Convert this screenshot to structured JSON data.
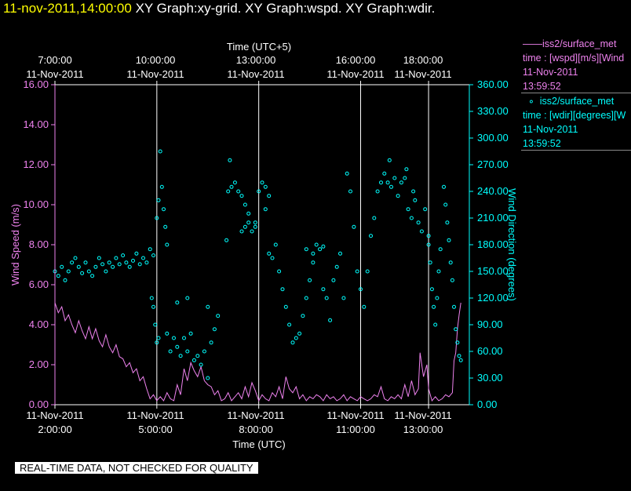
{
  "header": {
    "datetime": "11-nov-2011,14:00:00",
    "graphs": "XY Graph:xy-grid.  XY Graph:wspd.  XY Graph:wdir."
  },
  "top_axis": {
    "title": "Time (UTC+5)",
    "ticks": [
      {
        "time": "7:00:00",
        "date": "11-Nov-2011"
      },
      {
        "time": "10:00:00",
        "date": "11-Nov-2011"
      },
      {
        "time": "13:00:00",
        "date": "11-Nov-2011"
      },
      {
        "time": "16:00:00",
        "date": "11-Nov-2011"
      },
      {
        "time": "18:00:00",
        "date": "11-Nov-2011"
      }
    ]
  },
  "bottom_axis": {
    "title": "Time (UTC)",
    "ticks": [
      {
        "date": "11-Nov-2011",
        "time": "2:00:00"
      },
      {
        "date": "11-Nov-2011",
        "time": "5:00:00"
      },
      {
        "date": "11-Nov-2011",
        "time": "8:00:00"
      },
      {
        "date": "11-Nov-2011",
        "time": "11:00:00"
      },
      {
        "date": "11-Nov-2011",
        "time": "13:00:00"
      }
    ]
  },
  "legend": {
    "wspd": {
      "title": "iss2/surface_met",
      "line2": "time : [wspd][m/s][Wind",
      "date": "11-Nov-2011",
      "time": "13:59:52"
    },
    "wdir": {
      "title": "iss2/surface_met",
      "line2": "time : [wdir][degrees][W",
      "date": "11-Nov-2011",
      "time": "13:59:52"
    }
  },
  "notice": "REAL-TIME DATA, NOT CHECKED FOR QUALITY",
  "colors": {
    "wspd": "#ee82ee",
    "wdir": "#00ffff",
    "grid": "#ffffff",
    "background": "#000000"
  },
  "chart_data": {
    "type": "line+scatter",
    "x_unit": "hours UTC, 11-Nov-2011",
    "xlim": [
      2.0,
      14.2
    ],
    "grid_x": [
      5,
      8,
      11,
      13
    ],
    "left_axis": {
      "label": "Wind Speed (m/s)",
      "ylim": [
        0,
        16
      ],
      "ticks": [
        "0.00",
        "2.00",
        "4.00",
        "6.00",
        "8.00",
        "10.00",
        "12.00",
        "14.00",
        "16.00"
      ]
    },
    "right_axis": {
      "label": "Wind Direction (degrees)",
      "ylim": [
        0,
        360
      ],
      "ticks": [
        "0.00",
        "30.00",
        "60.00",
        "90.00",
        "120.00",
        "150.00",
        "180.00",
        "210.00",
        "240.00",
        "270.00",
        "300.00",
        "330.00",
        "360.00"
      ]
    },
    "series": [
      {
        "name": "wspd",
        "style": "line",
        "axis": "left",
        "points": [
          [
            2.0,
            5.1
          ],
          [
            2.1,
            4.6
          ],
          [
            2.2,
            4.9
          ],
          [
            2.3,
            4.2
          ],
          [
            2.4,
            4.5
          ],
          [
            2.5,
            4.0
          ],
          [
            2.6,
            3.6
          ],
          [
            2.7,
            4.2
          ],
          [
            2.8,
            3.7
          ],
          [
            2.9,
            3.3
          ],
          [
            3.0,
            3.9
          ],
          [
            3.1,
            3.3
          ],
          [
            3.2,
            3.8
          ],
          [
            3.3,
            3.2
          ],
          [
            3.4,
            2.9
          ],
          [
            3.5,
            3.5
          ],
          [
            3.6,
            2.9
          ],
          [
            3.7,
            2.6
          ],
          [
            3.8,
            3.0
          ],
          [
            3.9,
            2.4
          ],
          [
            4.0,
            2.3
          ],
          [
            4.1,
            1.9
          ],
          [
            4.2,
            2.1
          ],
          [
            4.3,
            1.6
          ],
          [
            4.4,
            1.8
          ],
          [
            4.5,
            1.2
          ],
          [
            4.6,
            1.4
          ],
          [
            4.7,
            0.8
          ],
          [
            4.8,
            0.3
          ],
          [
            4.9,
            0.5
          ],
          [
            5.0,
            0.2
          ],
          [
            5.1,
            0.4
          ],
          [
            5.2,
            0.2
          ],
          [
            5.3,
            0.6
          ],
          [
            5.4,
            0.3
          ],
          [
            5.5,
            0.2
          ],
          [
            5.6,
            1.0
          ],
          [
            5.7,
            0.5
          ],
          [
            5.8,
            1.8
          ],
          [
            5.9,
            1.2
          ],
          [
            6.0,
            2.1
          ],
          [
            6.1,
            1.7
          ],
          [
            6.2,
            1.4
          ],
          [
            6.3,
            1.9
          ],
          [
            6.4,
            1.2
          ],
          [
            6.5,
            1.0
          ],
          [
            6.6,
            0.9
          ],
          [
            6.7,
            0.5
          ],
          [
            6.8,
            0.7
          ],
          [
            6.9,
            0.2
          ],
          [
            7.0,
            0.3
          ],
          [
            7.1,
            0.6
          ],
          [
            7.2,
            0.2
          ],
          [
            7.3,
            0.4
          ],
          [
            7.4,
            0.6
          ],
          [
            7.5,
            0.3
          ],
          [
            7.6,
            0.9
          ],
          [
            7.7,
            0.4
          ],
          [
            7.8,
            1.1
          ],
          [
            7.9,
            0.7
          ],
          [
            8.0,
            0.2
          ],
          [
            8.1,
            0.5
          ],
          [
            8.2,
            0.3
          ],
          [
            8.3,
            0.2
          ],
          [
            8.4,
            0.6
          ],
          [
            8.5,
            0.4
          ],
          [
            8.6,
            0.9
          ],
          [
            8.7,
            0.3
          ],
          [
            8.8,
            1.4
          ],
          [
            8.9,
            0.8
          ],
          [
            9.0,
            0.6
          ],
          [
            9.1,
            0.9
          ],
          [
            9.2,
            0.3
          ],
          [
            9.3,
            0.5
          ],
          [
            9.4,
            0.2
          ],
          [
            9.5,
            0.4
          ],
          [
            9.6,
            0.3
          ],
          [
            9.7,
            0.5
          ],
          [
            9.8,
            0.4
          ],
          [
            9.9,
            0.2
          ],
          [
            10.0,
            0.5
          ],
          [
            10.1,
            0.3
          ],
          [
            10.2,
            0.4
          ],
          [
            10.3,
            0.2
          ],
          [
            10.4,
            0.3
          ],
          [
            10.5,
            0.5
          ],
          [
            10.6,
            0.2
          ],
          [
            10.7,
            0.4
          ],
          [
            10.8,
            0.3
          ],
          [
            10.9,
            0.2
          ],
          [
            11.0,
            0.4
          ],
          [
            11.1,
            0.3
          ],
          [
            11.2,
            0.2
          ],
          [
            11.3,
            0.3
          ],
          [
            11.4,
            0.5
          ],
          [
            11.5,
            0.4
          ],
          [
            11.6,
            0.9
          ],
          [
            11.7,
            0.3
          ],
          [
            11.8,
            0.2
          ],
          [
            11.9,
            0.4
          ],
          [
            12.0,
            0.3
          ],
          [
            12.1,
            0.5
          ],
          [
            12.2,
            0.3
          ],
          [
            12.3,
            1.0
          ],
          [
            12.4,
            0.4
          ],
          [
            12.5,
            1.2
          ],
          [
            12.6,
            0.5
          ],
          [
            12.7,
            0.8
          ],
          [
            12.75,
            2.6
          ],
          [
            12.85,
            1.4
          ],
          [
            12.95,
            2.0
          ],
          [
            13.0,
            0.8
          ],
          [
            13.1,
            0.2
          ],
          [
            13.2,
            0.4
          ],
          [
            13.3,
            0.2
          ],
          [
            13.4,
            0.3
          ],
          [
            13.5,
            0.5
          ],
          [
            13.6,
            0.4
          ],
          [
            13.7,
            0.6
          ],
          [
            13.75,
            2.2
          ],
          [
            13.8,
            2.6
          ],
          [
            13.85,
            3.8
          ],
          [
            13.9,
            4.5
          ],
          [
            13.95,
            5.1
          ]
        ]
      },
      {
        "name": "wdir",
        "style": "scatter",
        "axis": "right",
        "points": [
          [
            2.0,
            150
          ],
          [
            2.1,
            145
          ],
          [
            2.2,
            155
          ],
          [
            2.3,
            140
          ],
          [
            2.4,
            150
          ],
          [
            2.5,
            160
          ],
          [
            2.6,
            165
          ],
          [
            2.7,
            155
          ],
          [
            2.8,
            148
          ],
          [
            2.9,
            160
          ],
          [
            3.0,
            150
          ],
          [
            3.1,
            145
          ],
          [
            3.2,
            155
          ],
          [
            3.3,
            165
          ],
          [
            3.4,
            158
          ],
          [
            3.5,
            150
          ],
          [
            3.6,
            160
          ],
          [
            3.7,
            155
          ],
          [
            3.8,
            165
          ],
          [
            3.9,
            158
          ],
          [
            4.0,
            168
          ],
          [
            4.1,
            160
          ],
          [
            4.2,
            155
          ],
          [
            4.3,
            162
          ],
          [
            4.4,
            170
          ],
          [
            4.5,
            158
          ],
          [
            4.6,
            165
          ],
          [
            4.7,
            160
          ],
          [
            4.8,
            175
          ],
          [
            4.9,
            168
          ],
          [
            4.85,
            120
          ],
          [
            4.9,
            110
          ],
          [
            4.95,
            90
          ],
          [
            5.0,
            70
          ],
          [
            5.05,
            75
          ],
          [
            5.0,
            210
          ],
          [
            5.05,
            230
          ],
          [
            5.1,
            285
          ],
          [
            5.15,
            245
          ],
          [
            5.2,
            220
          ],
          [
            5.25,
            200
          ],
          [
            5.3,
            180
          ],
          [
            5.3,
            80
          ],
          [
            5.4,
            60
          ],
          [
            5.5,
            75
          ],
          [
            5.6,
            65
          ],
          [
            5.7,
            55
          ],
          [
            5.8,
            75
          ],
          [
            5.9,
            60
          ],
          [
            6.0,
            80
          ],
          [
            6.1,
            50
          ],
          [
            6.2,
            55
          ],
          [
            6.3,
            45
          ],
          [
            6.4,
            60
          ],
          [
            6.5,
            30
          ],
          [
            6.6,
            70
          ],
          [
            6.7,
            85
          ],
          [
            6.8,
            100
          ],
          [
            6.5,
            110
          ],
          [
            5.6,
            115
          ],
          [
            5.9,
            120
          ],
          [
            7.05,
            185
          ],
          [
            7.1,
            240
          ],
          [
            7.15,
            275
          ],
          [
            7.2,
            245
          ],
          [
            7.3,
            250
          ],
          [
            7.4,
            240
          ],
          [
            7.5,
            235
          ],
          [
            7.6,
            225
          ],
          [
            7.7,
            215
          ],
          [
            7.8,
            195
          ],
          [
            7.9,
            205
          ],
          [
            7.9,
            200
          ],
          [
            7.5,
            195
          ],
          [
            7.6,
            200
          ],
          [
            7.7,
            205
          ],
          [
            8.0,
            240
          ],
          [
            8.1,
            250
          ],
          [
            8.2,
            245
          ],
          [
            8.3,
            235
          ],
          [
            8.2,
            220
          ],
          [
            8.3,
            170
          ],
          [
            8.4,
            165
          ],
          [
            8.5,
            180
          ],
          [
            8.6,
            150
          ],
          [
            8.7,
            130
          ],
          [
            8.8,
            110
          ],
          [
            8.9,
            90
          ],
          [
            9.0,
            70
          ],
          [
            9.1,
            75
          ],
          [
            9.2,
            80
          ],
          [
            9.3,
            100
          ],
          [
            9.4,
            120
          ],
          [
            9.5,
            140
          ],
          [
            9.6,
            160
          ],
          [
            9.7,
            180
          ],
          [
            9.8,
            175
          ],
          [
            9.9,
            178
          ],
          [
            9.4,
            175
          ],
          [
            9.6,
            170
          ],
          [
            9.9,
            130
          ],
          [
            10.0,
            120
          ],
          [
            10.1,
            95
          ],
          [
            10.2,
            140
          ],
          [
            10.3,
            155
          ],
          [
            10.4,
            170
          ],
          [
            10.5,
            120
          ],
          [
            10.6,
            260
          ],
          [
            10.7,
            240
          ],
          [
            10.8,
            200
          ],
          [
            10.9,
            150
          ],
          [
            11.0,
            130
          ],
          [
            11.1,
            110
          ],
          [
            11.2,
            150
          ],
          [
            11.3,
            190
          ],
          [
            11.4,
            210
          ],
          [
            11.5,
            240
          ],
          [
            11.6,
            250
          ],
          [
            11.7,
            260
          ],
          [
            11.8,
            250
          ],
          [
            11.9,
            245
          ],
          [
            12.0,
            255
          ],
          [
            12.1,
            235
          ],
          [
            12.2,
            250
          ],
          [
            12.3,
            255
          ],
          [
            12.4,
            220
          ],
          [
            12.5,
            210
          ],
          [
            12.6,
            230
          ],
          [
            12.7,
            205
          ],
          [
            12.8,
            195
          ],
          [
            12.9,
            220
          ],
          [
            13.0,
            190
          ],
          [
            12.55,
            240
          ],
          [
            12.35,
            265
          ],
          [
            11.85,
            275
          ],
          [
            13.0,
            180
          ],
          [
            13.05,
            160
          ],
          [
            13.1,
            130
          ],
          [
            13.15,
            110
          ],
          [
            13.2,
            90
          ],
          [
            13.25,
            120
          ],
          [
            13.3,
            150
          ],
          [
            13.35,
            175
          ],
          [
            13.45,
            245
          ],
          [
            13.5,
            225
          ],
          [
            13.55,
            205
          ],
          [
            13.6,
            185
          ],
          [
            13.65,
            160
          ],
          [
            13.7,
            140
          ],
          [
            13.75,
            110
          ],
          [
            13.8,
            85
          ],
          [
            13.85,
            70
          ],
          [
            13.9,
            55
          ],
          [
            13.95,
            50
          ]
        ]
      }
    ]
  }
}
